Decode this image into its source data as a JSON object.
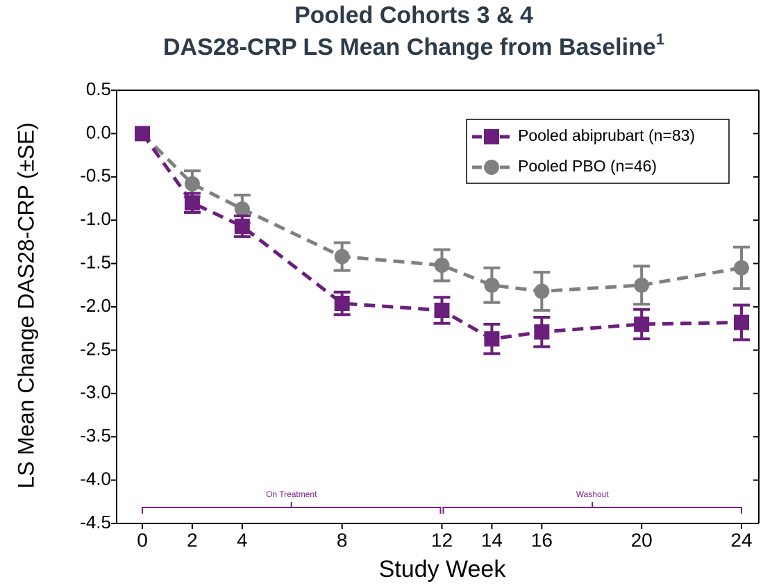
{
  "chart_data": {
    "type": "line",
    "title": [
      "Pooled Cohorts 3 & 4",
      "DAS28-CRP LS Mean Change from Baseline"
    ],
    "title_superscript": "1",
    "x_label": "Study Week",
    "y_label": "LS Mean Change DAS28-CRP (±SE)",
    "x": [
      0,
      2,
      4,
      8,
      12,
      14,
      16,
      20,
      24
    ],
    "xlim": [
      0,
      24
    ],
    "xticks": [
      0,
      2,
      4,
      8,
      12,
      14,
      16,
      20,
      24
    ],
    "ylim": [
      -4.5,
      0.5
    ],
    "yticks": [
      0.5,
      {
        "value": 0,
        "label": "0.0"
      },
      -0.5,
      {
        "value": -1,
        "label": "-1.0"
      },
      -1.5,
      {
        "value": -2,
        "label": "-2.0"
      },
      -2.5,
      {
        "value": -3,
        "label": "-3.0"
      },
      -3.5,
      {
        "value": -4,
        "label": "-4.0"
      },
      -4.5
    ],
    "series": [
      {
        "name": "Pooled abiprubart (n=83)",
        "color": "#6b1f7c",
        "marker": "square",
        "values": [
          0,
          -0.8,
          -1.07,
          -1.96,
          -2.04,
          -2.37,
          -2.29,
          -2.2,
          -2.18
        ],
        "errors": [
          0,
          0.11,
          0.12,
          0.13,
          0.15,
          0.17,
          0.17,
          0.17,
          0.2
        ]
      },
      {
        "name": "Pooled PBO (n=46)",
        "color": "#808080",
        "marker": "circle",
        "values": [
          0,
          -0.58,
          -0.87,
          -1.42,
          -1.52,
          -1.75,
          -1.82,
          -1.75,
          -1.55
        ],
        "errors": [
          0,
          0.15,
          0.16,
          0.16,
          0.18,
          0.2,
          0.22,
          0.22,
          0.24
        ]
      }
    ],
    "periods": [
      {
        "label": "On Treatment",
        "x": [
          0,
          12
        ]
      },
      {
        "label": "Washout",
        "x": [
          12,
          24
        ]
      }
    ],
    "legend": "upper right"
  }
}
